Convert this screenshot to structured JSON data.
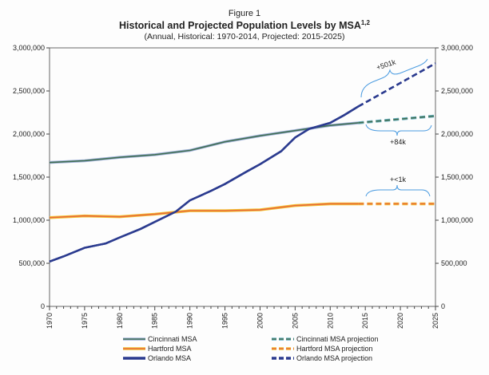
{
  "chart_data": {
    "type": "line",
    "figure_label": "Figure 1",
    "title": "Historical and Projected Population Levels by MSA",
    "title_superscript": "1,2",
    "subtitle": "(Annual, Historical: 1970-2014, Projected: 2015-2025)",
    "xlim": [
      1970,
      2025
    ],
    "ylim": [
      0,
      3000000
    ],
    "x_ticks": [
      "1970",
      "1975",
      "1980",
      "1985",
      "1990",
      "1995",
      "2000",
      "2005",
      "2010",
      "2015",
      "2020",
      "2025"
    ],
    "y_ticks": [
      "0",
      "500,000",
      "1,000,000",
      "1,500,000",
      "2,000,000",
      "2,500,000",
      "3,000,000"
    ],
    "y_tick_values": [
      0,
      500000,
      1000000,
      1500000,
      2000000,
      2500000,
      3000000
    ],
    "grid": false,
    "legend_placement": "bottom",
    "series": [
      {
        "name": "Cincinnati MSA",
        "color": "#3f6e52",
        "outline": "#9fb0d8",
        "dashed": false,
        "x": [
          1970,
          1975,
          1980,
          1985,
          1990,
          1995,
          2000,
          2005,
          2010,
          2014
        ],
        "y": [
          1670000,
          1690000,
          1730000,
          1760000,
          1810000,
          1910000,
          1980000,
          2040000,
          2100000,
          2130000
        ]
      },
      {
        "name": "Hartford MSA",
        "color": "#e86a3a",
        "outline": "#f2c230",
        "dashed": false,
        "x": [
          1970,
          1975,
          1980,
          1985,
          1990,
          1995,
          2000,
          2005,
          2010,
          2014
        ],
        "y": [
          1030000,
          1050000,
          1040000,
          1070000,
          1110000,
          1110000,
          1120000,
          1170000,
          1190000,
          1190000
        ]
      },
      {
        "name": "Orlando MSA",
        "color": "#2b3b8f",
        "outline": "#2b3b8f",
        "dashed": false,
        "x": [
          1970,
          1972,
          1975,
          1978,
          1980,
          1983,
          1985,
          1988,
          1990,
          1993,
          1995,
          1998,
          2000,
          2003,
          2005,
          2007,
          2010,
          2012,
          2014
        ],
        "y": [
          520000,
          580000,
          680000,
          730000,
          800000,
          900000,
          980000,
          1100000,
          1230000,
          1340000,
          1420000,
          1560000,
          1650000,
          1800000,
          1960000,
          2060000,
          2130000,
          2220000,
          2320000
        ]
      },
      {
        "name": "Cincinnati MSA projection",
        "color": "#3f6e52",
        "outline": "#6ab0c0",
        "dashed": true,
        "x": [
          2014,
          2025
        ],
        "y": [
          2130000,
          2210000
        ]
      },
      {
        "name": "Hartford MSA projection",
        "color": "#e86a3a",
        "outline": "#f2c230",
        "dashed": true,
        "x": [
          2014,
          2025
        ],
        "y": [
          1190000,
          1190000
        ]
      },
      {
        "name": "Orlando MSA projection",
        "color": "#2b3b8f",
        "outline": "#2b3b8f",
        "dashed": true,
        "x": [
          2014,
          2025
        ],
        "y": [
          2320000,
          2820000
        ]
      }
    ],
    "annotations": [
      {
        "text": "+501k",
        "series": "Orlando MSA projection"
      },
      {
        "text": "+84k",
        "series": "Cincinnati MSA projection"
      },
      {
        "text": "+<1k",
        "series": "Hartford MSA projection"
      }
    ],
    "brace_color": "#4a9be0"
  }
}
